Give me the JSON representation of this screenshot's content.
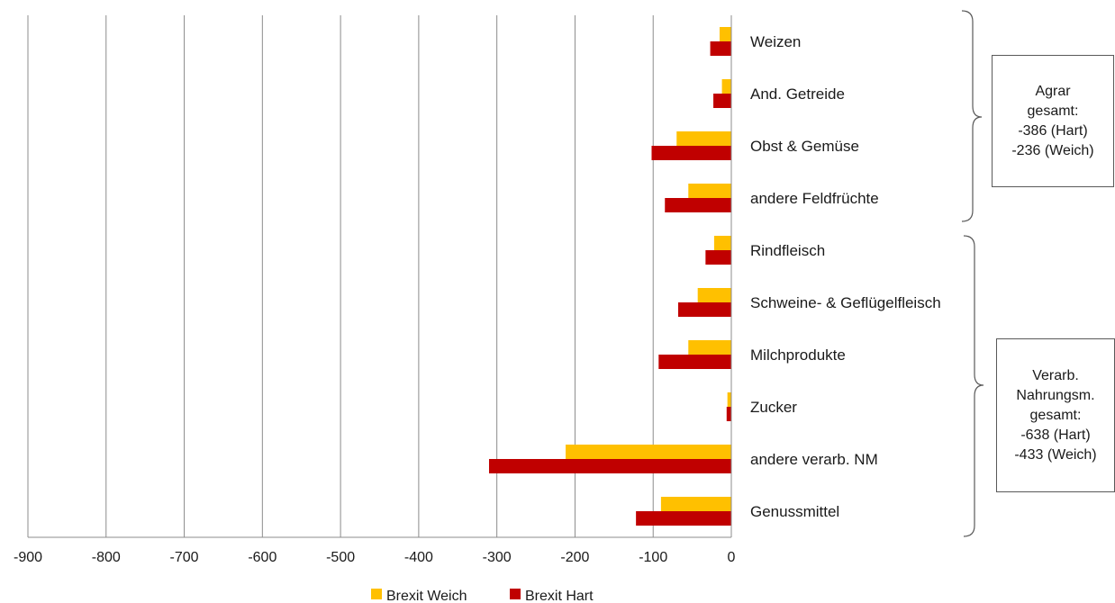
{
  "chart_data": {
    "type": "bar",
    "orientation": "horizontal",
    "categories": [
      "Weizen",
      "And. Getreide",
      "Obst & Gemüse",
      "andere Feldfrüchte",
      "Rindfleisch",
      "Schweine- & Geflügelfleisch",
      "Milchprodukte",
      "Zucker",
      "andere verarb. NM",
      "Genussmittel"
    ],
    "series": [
      {
        "name": "Brexit Weich",
        "color": "#FFC000",
        "values": [
          -15,
          -12,
          -70,
          -55,
          -22,
          -43,
          -55,
          -5,
          -212,
          -90
        ]
      },
      {
        "name": "Brexit Hart",
        "color": "#C00000",
        "values": [
          -27,
          -23,
          -102,
          -85,
          -33,
          -68,
          -93,
          -6,
          -310,
          -122
        ]
      }
    ],
    "xlim": [
      -900,
      0
    ],
    "xticks": [
      "-900",
      "-800",
      "-700",
      "-600",
      "-500",
      "-400",
      "-300",
      "-200",
      "-100",
      "0"
    ],
    "xtick_values": [
      -900,
      -800,
      -700,
      -600,
      -500,
      -400,
      -300,
      -200,
      -100,
      0
    ],
    "grid": "vertical",
    "legend_position": "bottom"
  },
  "annotations": {
    "agrar": {
      "lines": [
        "Agrar",
        "gesamt:",
        "-386 (Hart)",
        "-236 (Weich)"
      ]
    },
    "verarb": {
      "lines": [
        "Verarb.",
        "Nahrungsm.",
        "gesamt:",
        "-638 (Hart)",
        "-433 (Weich)"
      ]
    }
  }
}
